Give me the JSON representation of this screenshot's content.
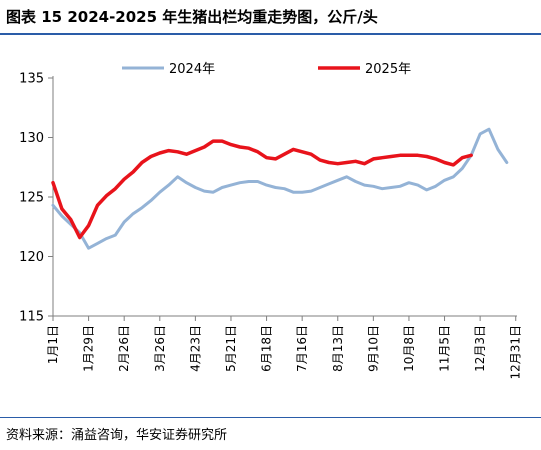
{
  "header": {
    "title": "图表 15 2024-2025 年生猪出栏均重走势图，公斤/头"
  },
  "footer": {
    "source": "资料来源：涌益咨询，华安证券研究所"
  },
  "colors": {
    "series_2024": "#94b3d6",
    "series_2025": "#e8131b",
    "rule": "#2a5ca8",
    "axis": "#7f7f7f"
  },
  "chart_data": {
    "type": "line",
    "ylim": [
      115,
      135
    ],
    "yticks": [
      115,
      120,
      125,
      130,
      135
    ],
    "x_domain_days": [
      0,
      365
    ],
    "x_ticks": [
      {
        "label": "1月1日",
        "day": 0
      },
      {
        "label": "1月29日",
        "day": 28
      },
      {
        "label": "2月26日",
        "day": 56
      },
      {
        "label": "3月26日",
        "day": 84
      },
      {
        "label": "4月23日",
        "day": 112
      },
      {
        "label": "5月21日",
        "day": 140
      },
      {
        "label": "6月18日",
        "day": 168
      },
      {
        "label": "7月16日",
        "day": 196
      },
      {
        "label": "8月13日",
        "day": 224
      },
      {
        "label": "9月10日",
        "day": 252
      },
      {
        "label": "10月8日",
        "day": 280
      },
      {
        "label": "11月5日",
        "day": 308
      },
      {
        "label": "12月3日",
        "day": 336
      },
      {
        "label": "12月31日",
        "day": 364
      }
    ],
    "legend": {
      "position": "top"
    },
    "series": [
      {
        "name": "2024年",
        "color": "#94b3d6",
        "points": [
          [
            0,
            124.3
          ],
          [
            7,
            123.4
          ],
          [
            14,
            122.7
          ],
          [
            21,
            122.0
          ],
          [
            28,
            120.7
          ],
          [
            35,
            121.1
          ],
          [
            42,
            121.5
          ],
          [
            49,
            121.8
          ],
          [
            56,
            122.9
          ],
          [
            63,
            123.6
          ],
          [
            70,
            124.1
          ],
          [
            77,
            124.7
          ],
          [
            84,
            125.4
          ],
          [
            91,
            126.0
          ],
          [
            98,
            126.7
          ],
          [
            105,
            126.2
          ],
          [
            112,
            125.8
          ],
          [
            119,
            125.5
          ],
          [
            126,
            125.4
          ],
          [
            133,
            125.8
          ],
          [
            140,
            126.0
          ],
          [
            147,
            126.2
          ],
          [
            154,
            126.3
          ],
          [
            161,
            126.3
          ],
          [
            168,
            126.0
          ],
          [
            175,
            125.8
          ],
          [
            182,
            125.7
          ],
          [
            189,
            125.4
          ],
          [
            196,
            125.4
          ],
          [
            203,
            125.5
          ],
          [
            210,
            125.8
          ],
          [
            217,
            126.1
          ],
          [
            224,
            126.4
          ],
          [
            231,
            126.7
          ],
          [
            238,
            126.3
          ],
          [
            245,
            126.0
          ],
          [
            252,
            125.9
          ],
          [
            259,
            125.7
          ],
          [
            266,
            125.8
          ],
          [
            273,
            125.9
          ],
          [
            280,
            126.2
          ],
          [
            287,
            126.0
          ],
          [
            294,
            125.6
          ],
          [
            301,
            125.9
          ],
          [
            308,
            126.4
          ],
          [
            315,
            126.7
          ],
          [
            322,
            127.4
          ],
          [
            329,
            128.5
          ],
          [
            336,
            130.3
          ],
          [
            343,
            130.7
          ],
          [
            350,
            129.0
          ],
          [
            357,
            127.9
          ]
        ]
      },
      {
        "name": "2025年",
        "color": "#e8131b",
        "points": [
          [
            0,
            126.2
          ],
          [
            7,
            124.0
          ],
          [
            14,
            123.1
          ],
          [
            21,
            121.6
          ],
          [
            28,
            122.6
          ],
          [
            35,
            124.3
          ],
          [
            42,
            125.1
          ],
          [
            49,
            125.7
          ],
          [
            56,
            126.5
          ],
          [
            63,
            127.1
          ],
          [
            70,
            127.9
          ],
          [
            77,
            128.4
          ],
          [
            84,
            128.7
          ],
          [
            91,
            128.9
          ],
          [
            98,
            128.8
          ],
          [
            105,
            128.6
          ],
          [
            112,
            128.9
          ],
          [
            119,
            129.2
          ],
          [
            126,
            129.7
          ],
          [
            133,
            129.7
          ],
          [
            140,
            129.4
          ],
          [
            147,
            129.2
          ],
          [
            154,
            129.1
          ],
          [
            161,
            128.8
          ],
          [
            168,
            128.3
          ],
          [
            175,
            128.2
          ],
          [
            182,
            128.6
          ],
          [
            189,
            129.0
          ],
          [
            196,
            128.8
          ],
          [
            203,
            128.6
          ],
          [
            210,
            128.1
          ],
          [
            217,
            127.9
          ],
          [
            224,
            127.8
          ],
          [
            231,
            127.9
          ],
          [
            238,
            128.0
          ],
          [
            245,
            127.8
          ],
          [
            252,
            128.2
          ],
          [
            259,
            128.3
          ],
          [
            266,
            128.4
          ],
          [
            273,
            128.5
          ],
          [
            280,
            128.5
          ],
          [
            287,
            128.5
          ],
          [
            294,
            128.4
          ],
          [
            301,
            128.2
          ],
          [
            308,
            127.9
          ],
          [
            315,
            127.7
          ],
          [
            322,
            128.3
          ],
          [
            329,
            128.5
          ]
        ]
      }
    ]
  }
}
